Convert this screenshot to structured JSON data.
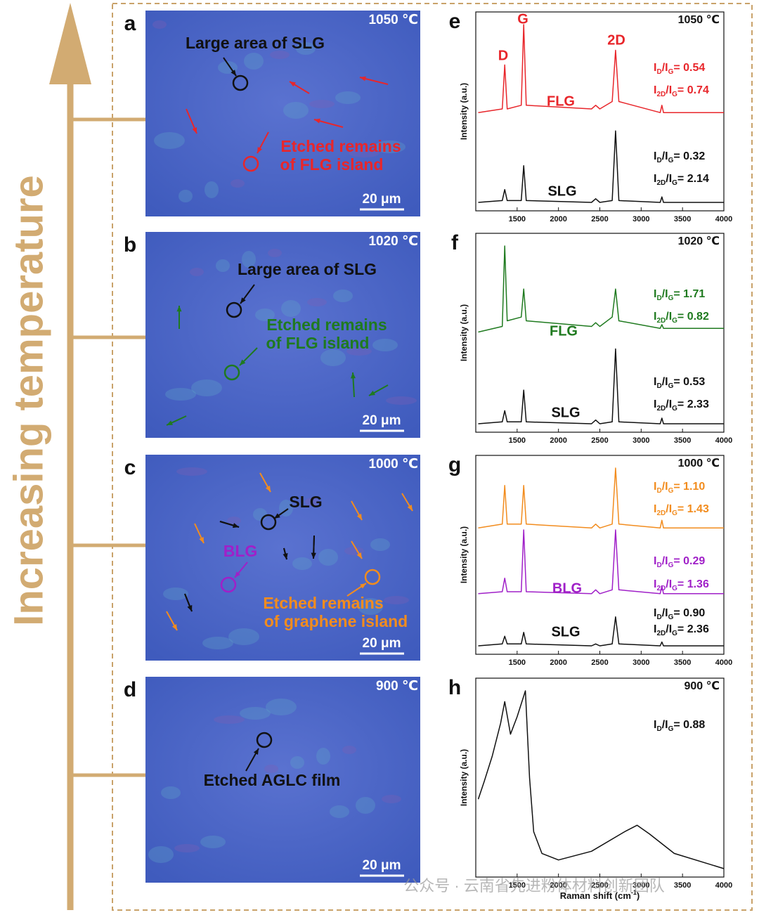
{
  "side_label": "Increasing temperature",
  "micrographs": [
    {
      "letter": "a",
      "temperature": "1050 ℃",
      "scale": "20 μm",
      "annotations": [
        {
          "lines": [
            "Large area of SLG"
          ],
          "color": "#111111"
        },
        {
          "lines": [
            "Etched remains",
            "of FLG island"
          ],
          "color": "#e8262b"
        }
      ]
    },
    {
      "letter": "b",
      "temperature": "1020 ℃",
      "scale": "20 μm",
      "annotations": [
        {
          "lines": [
            "Large area of SLG"
          ],
          "color": "#111111"
        },
        {
          "lines": [
            "Etched remains",
            "of FLG island"
          ],
          "color": "#1f7a1f"
        }
      ]
    },
    {
      "letter": "c",
      "temperature": "1000 ℃",
      "scale": "20 μm",
      "annotations": [
        {
          "lines": [
            "SLG"
          ],
          "color": "#111111"
        },
        {
          "lines": [
            "BLG"
          ],
          "color": "#a020c8"
        },
        {
          "lines": [
            "Etched remains",
            "of graphene island"
          ],
          "color": "#f28c1e"
        }
      ]
    },
    {
      "letter": "d",
      "temperature": "900 ℃",
      "scale": "20 μm",
      "annotations": [
        {
          "lines": [
            "Etched AGLC film"
          ],
          "color": "#111111"
        }
      ]
    }
  ],
  "raman_xticks": [
    1500,
    2000,
    2500,
    3000,
    3500,
    4000
  ],
  "raman_xlim": [
    1000,
    4000
  ],
  "y_label": "Intensity (a.u.)",
  "x_label": [
    "Raman shift (cm",
    "-1",
    ")"
  ],
  "spectra": [
    {
      "letter": "e",
      "temperature": "1050 ℃",
      "peak_labels": [
        "D",
        "G",
        "2D"
      ],
      "traces": [
        {
          "name": "FLG",
          "color": "#e8262b",
          "ratios": [
            [
              "I",
              "D",
              "/I",
              "G",
              "= 0.54"
            ],
            [
              "I",
              "2D",
              "/I",
              "G",
              "= 0.74"
            ]
          ],
          "x": [
            1030,
            1320,
            1350,
            1380,
            1550,
            1580,
            1610,
            2400,
            2450,
            2500,
            2650,
            2690,
            2730,
            3230,
            3250,
            3270,
            4000
          ],
          "values": [
            52,
            54,
            78,
            54,
            56,
            100,
            56,
            54,
            56,
            54,
            58,
            86,
            58,
            52,
            56,
            52,
            52
          ]
        },
        {
          "name": "SLG",
          "color": "#111111",
          "ratios": [
            [
              "I",
              "D",
              "/I",
              "G",
              "= 0.32"
            ],
            [
              "I",
              "2D",
              "/I",
              "G",
              "= 2.14"
            ]
          ],
          "x": [
            1030,
            1320,
            1350,
            1380,
            1550,
            1580,
            1610,
            2400,
            2450,
            2500,
            2650,
            2690,
            2730,
            3230,
            3250,
            3270,
            4000
          ],
          "values": [
            3,
            4,
            10,
            4,
            4,
            23,
            4,
            3,
            5,
            3,
            4,
            42,
            4,
            3,
            6,
            3,
            3
          ]
        }
      ]
    },
    {
      "letter": "f",
      "temperature": "1020 ℃",
      "peak_labels": [],
      "traces": [
        {
          "name": "FLG",
          "color": "#1f7a1f",
          "ratios": [
            [
              "I",
              "D",
              "/I",
              "G",
              "= 1.71"
            ],
            [
              "I",
              "2D",
              "/I",
              "G",
              "= 0.82"
            ]
          ],
          "x": [
            1030,
            1320,
            1350,
            1380,
            1550,
            1580,
            1610,
            2400,
            2450,
            2500,
            2650,
            2690,
            2730,
            3230,
            3250,
            3270,
            4000
          ],
          "values": [
            52,
            55,
            98,
            58,
            60,
            75,
            58,
            55,
            57,
            55,
            60,
            75,
            58,
            54,
            56,
            54,
            54
          ]
        },
        {
          "name": "SLG",
          "color": "#111111",
          "ratios": [
            [
              "I",
              "D",
              "/I",
              "G",
              "= 0.53"
            ],
            [
              "I",
              "2D",
              "/I",
              "G",
              "= 2.33"
            ]
          ],
          "x": [
            1030,
            1320,
            1350,
            1380,
            1550,
            1580,
            1610,
            2400,
            2450,
            2500,
            2650,
            2690,
            2730,
            3230,
            3250,
            3270,
            4000
          ],
          "values": [
            3,
            4,
            10,
            4,
            4,
            21,
            4,
            3,
            5,
            3,
            4,
            43,
            4,
            3,
            6,
            3,
            3
          ]
        }
      ]
    },
    {
      "letter": "g",
      "temperature": "1000 ℃",
      "peak_labels": [],
      "traces": [
        {
          "name": null,
          "color": "#f28c1e",
          "ratios": [
            [
              "I",
              "D",
              "/I",
              "G",
              "= 1.10"
            ],
            [
              "I",
              "2D",
              "/I",
              "G",
              "= 1.43"
            ]
          ],
          "x": [
            1030,
            1320,
            1350,
            1380,
            1550,
            1580,
            1610,
            2400,
            2450,
            2500,
            2650,
            2690,
            2730,
            3230,
            3250,
            3270,
            4000
          ],
          "values": [
            64,
            66,
            86,
            66,
            66,
            86,
            66,
            64,
            66,
            64,
            66,
            95,
            66,
            64,
            68,
            64,
            64
          ]
        },
        {
          "name": "BLG",
          "color": "#a020c8",
          "ratios": [
            [
              "I",
              "D",
              "/I",
              "G",
              "= 0.29"
            ],
            [
              "I",
              "2D",
              "/I",
              "G",
              "= 1.36"
            ]
          ],
          "x": [
            1030,
            1320,
            1350,
            1380,
            1550,
            1580,
            1610,
            2400,
            2450,
            2500,
            2650,
            2690,
            2730,
            3230,
            3250,
            3270,
            4000
          ],
          "values": [
            30,
            31,
            38,
            31,
            31,
            63,
            31,
            30,
            32,
            30,
            32,
            63,
            32,
            30,
            34,
            30,
            30
          ]
        },
        {
          "name": "SLG",
          "color": "#111111",
          "ratios": [
            [
              "I",
              "D",
              "/I",
              "G",
              "= 0.90"
            ],
            [
              "I",
              "2D",
              "/I",
              "G",
              "= 2.36"
            ]
          ],
          "x": [
            1030,
            1320,
            1350,
            1380,
            1550,
            1580,
            1610,
            2400,
            2450,
            2500,
            2650,
            2690,
            2730,
            3230,
            3250,
            3270,
            4000
          ],
          "values": [
            3,
            4,
            8,
            4,
            4,
            10,
            4,
            3,
            4,
            3,
            4,
            18,
            4,
            3,
            5,
            3,
            3
          ]
        }
      ]
    },
    {
      "letter": "h",
      "temperature": "900 ℃",
      "peak_labels": [],
      "traces": [
        {
          "name": null,
          "color": "#111111",
          "ratios": [
            [
              "I",
              "D",
              "/I",
              "G",
              "= 0.88"
            ]
          ],
          "x": [
            1030,
            1100,
            1200,
            1300,
            1350,
            1420,
            1500,
            1600,
            1650,
            1700,
            1800,
            2000,
            2400,
            2800,
            2950,
            3100,
            3400,
            4000
          ],
          "values": [
            50,
            58,
            70,
            85,
            95,
            80,
            88,
            100,
            60,
            35,
            25,
            22,
            26,
            35,
            38,
            34,
            25,
            18
          ]
        }
      ]
    }
  ],
  "watermark": "公众号 · 云南省先进粉体材料创新团队"
}
